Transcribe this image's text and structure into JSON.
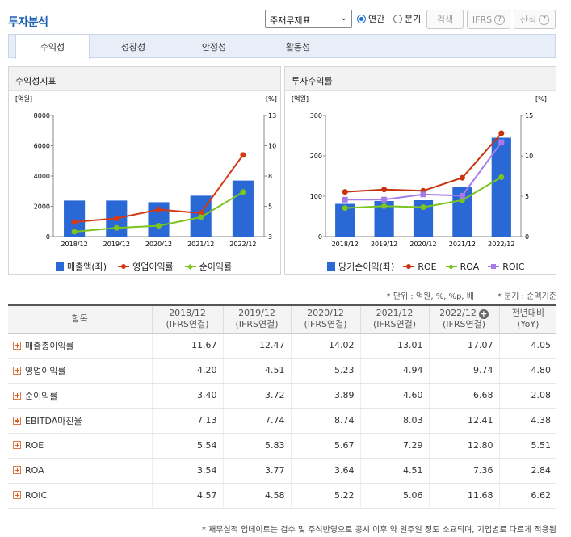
{
  "header": {
    "title": "투자분석",
    "select_value": "주재무제표",
    "radio_annual": "연간",
    "radio_quarter": "분기",
    "search_button": "검색",
    "ifrs_button": "IFRS",
    "formula_button": "산식",
    "help_glyph": "?"
  },
  "tabs": [
    "수익성",
    "성장성",
    "안정성",
    "활동성"
  ],
  "left_chart": {
    "panel_title": "수익성지표",
    "unit_left": "[억원]",
    "unit_right": "[%]",
    "left_ticks": [
      "8000",
      "6000",
      "4000",
      "2000",
      "0"
    ],
    "right_ticks": [
      "13",
      "10",
      "8",
      "5",
      "3"
    ],
    "legend": [
      "매출액(좌)",
      "영업이익률",
      "순이익률"
    ]
  },
  "right_chart": {
    "panel_title": "투자수익률",
    "unit_left": "[억원]",
    "unit_right": "[%]",
    "left_ticks": [
      "300",
      "200",
      "100",
      "0"
    ],
    "right_ticks": [
      "15",
      "10",
      "5",
      "0"
    ],
    "legend": [
      "당기순이익(좌)",
      "ROE",
      "ROA",
      "ROIC"
    ]
  },
  "chart_data": [
    {
      "type": "bar+line",
      "title": "수익성지표",
      "categories": [
        "2018/12",
        "2019/12",
        "2020/12",
        "2021/12",
        "2022/12"
      ],
      "ylim_left": [
        0,
        8000
      ],
      "ylim_right": [
        3,
        13
      ],
      "series": [
        {
          "name": "매출액(좌)",
          "type": "bar",
          "axis": "left",
          "color": "#2a68d6",
          "values": [
            2380,
            2380,
            2270,
            2700,
            3700
          ]
        },
        {
          "name": "영업이익률",
          "type": "line",
          "axis": "right",
          "color": "#d43a14",
          "values": [
            4.2,
            4.51,
            5.23,
            4.94,
            9.74
          ]
        },
        {
          "name": "순이익률",
          "type": "line",
          "axis": "right",
          "color": "#7cc520",
          "values": [
            3.4,
            3.72,
            3.89,
            4.6,
            6.68
          ]
        }
      ]
    },
    {
      "type": "bar+line",
      "title": "투자수익률",
      "categories": [
        "2018/12",
        "2019/12",
        "2020/12",
        "2021/12",
        "2022/12"
      ],
      "ylim_left": [
        0,
        300
      ],
      "ylim_right": [
        0,
        15
      ],
      "series": [
        {
          "name": "당기순이익(좌)",
          "type": "bar",
          "axis": "left",
          "color": "#2a68d6",
          "values": [
            81,
            88,
            90,
            124,
            245
          ]
        },
        {
          "name": "ROE",
          "type": "line",
          "axis": "right",
          "color": "#c8320c",
          "values": [
            5.54,
            5.83,
            5.67,
            7.29,
            12.8
          ]
        },
        {
          "name": "ROA",
          "type": "line",
          "axis": "right",
          "color": "#7cc520",
          "values": [
            3.54,
            3.77,
            3.64,
            4.51,
            7.36
          ]
        },
        {
          "name": "ROIC",
          "type": "line",
          "axis": "right",
          "color": "#a67be8",
          "marker": "square",
          "values": [
            4.57,
            4.58,
            5.22,
            5.06,
            11.68
          ]
        }
      ]
    }
  ],
  "notes": {
    "unit_note": "* 단위 : 억원, %, %p, 배",
    "quarter_note": "* 분기 : 순액기준"
  },
  "table": {
    "header_item": "항목",
    "columns": [
      {
        "year": "2018/12",
        "sub": "(IFRS연결)"
      },
      {
        "year": "2019/12",
        "sub": "(IFRS연결)"
      },
      {
        "year": "2020/12",
        "sub": "(IFRS연결)"
      },
      {
        "year": "2021/12",
        "sub": "(IFRS연결)"
      },
      {
        "year": "2022/12",
        "sub": "(IFRS연결)"
      },
      {
        "year": "전년대비",
        "sub": "(YoY)"
      }
    ],
    "rows": [
      {
        "label": "매출총이익률",
        "values": [
          "11.67",
          "12.47",
          "14.02",
          "13.01",
          "17.07",
          "4.05"
        ]
      },
      {
        "label": "영업이익률",
        "values": [
          "4.20",
          "4.51",
          "5.23",
          "4.94",
          "9.74",
          "4.80"
        ]
      },
      {
        "label": "순이익률",
        "values": [
          "3.40",
          "3.72",
          "3.89",
          "4.60",
          "6.68",
          "2.08"
        ]
      },
      {
        "label": "EBITDA마진율",
        "values": [
          "7.13",
          "7.74",
          "8.74",
          "8.03",
          "12.41",
          "4.38"
        ]
      },
      {
        "label": "ROE",
        "values": [
          "5.54",
          "5.83",
          "5.67",
          "7.29",
          "12.80",
          "5.51"
        ]
      },
      {
        "label": "ROA",
        "values": [
          "3.54",
          "3.77",
          "3.64",
          "4.51",
          "7.36",
          "2.84"
        ]
      },
      {
        "label": "ROIC",
        "values": [
          "4.57",
          "4.58",
          "5.22",
          "5.06",
          "11.68",
          "6.62"
        ]
      }
    ]
  },
  "footer": "* 재무실적 업데이트는 검수 및 주석반영으로 공시 이후 약 일주일 정도 소요되며, 기업별로 다르게 적용됨"
}
